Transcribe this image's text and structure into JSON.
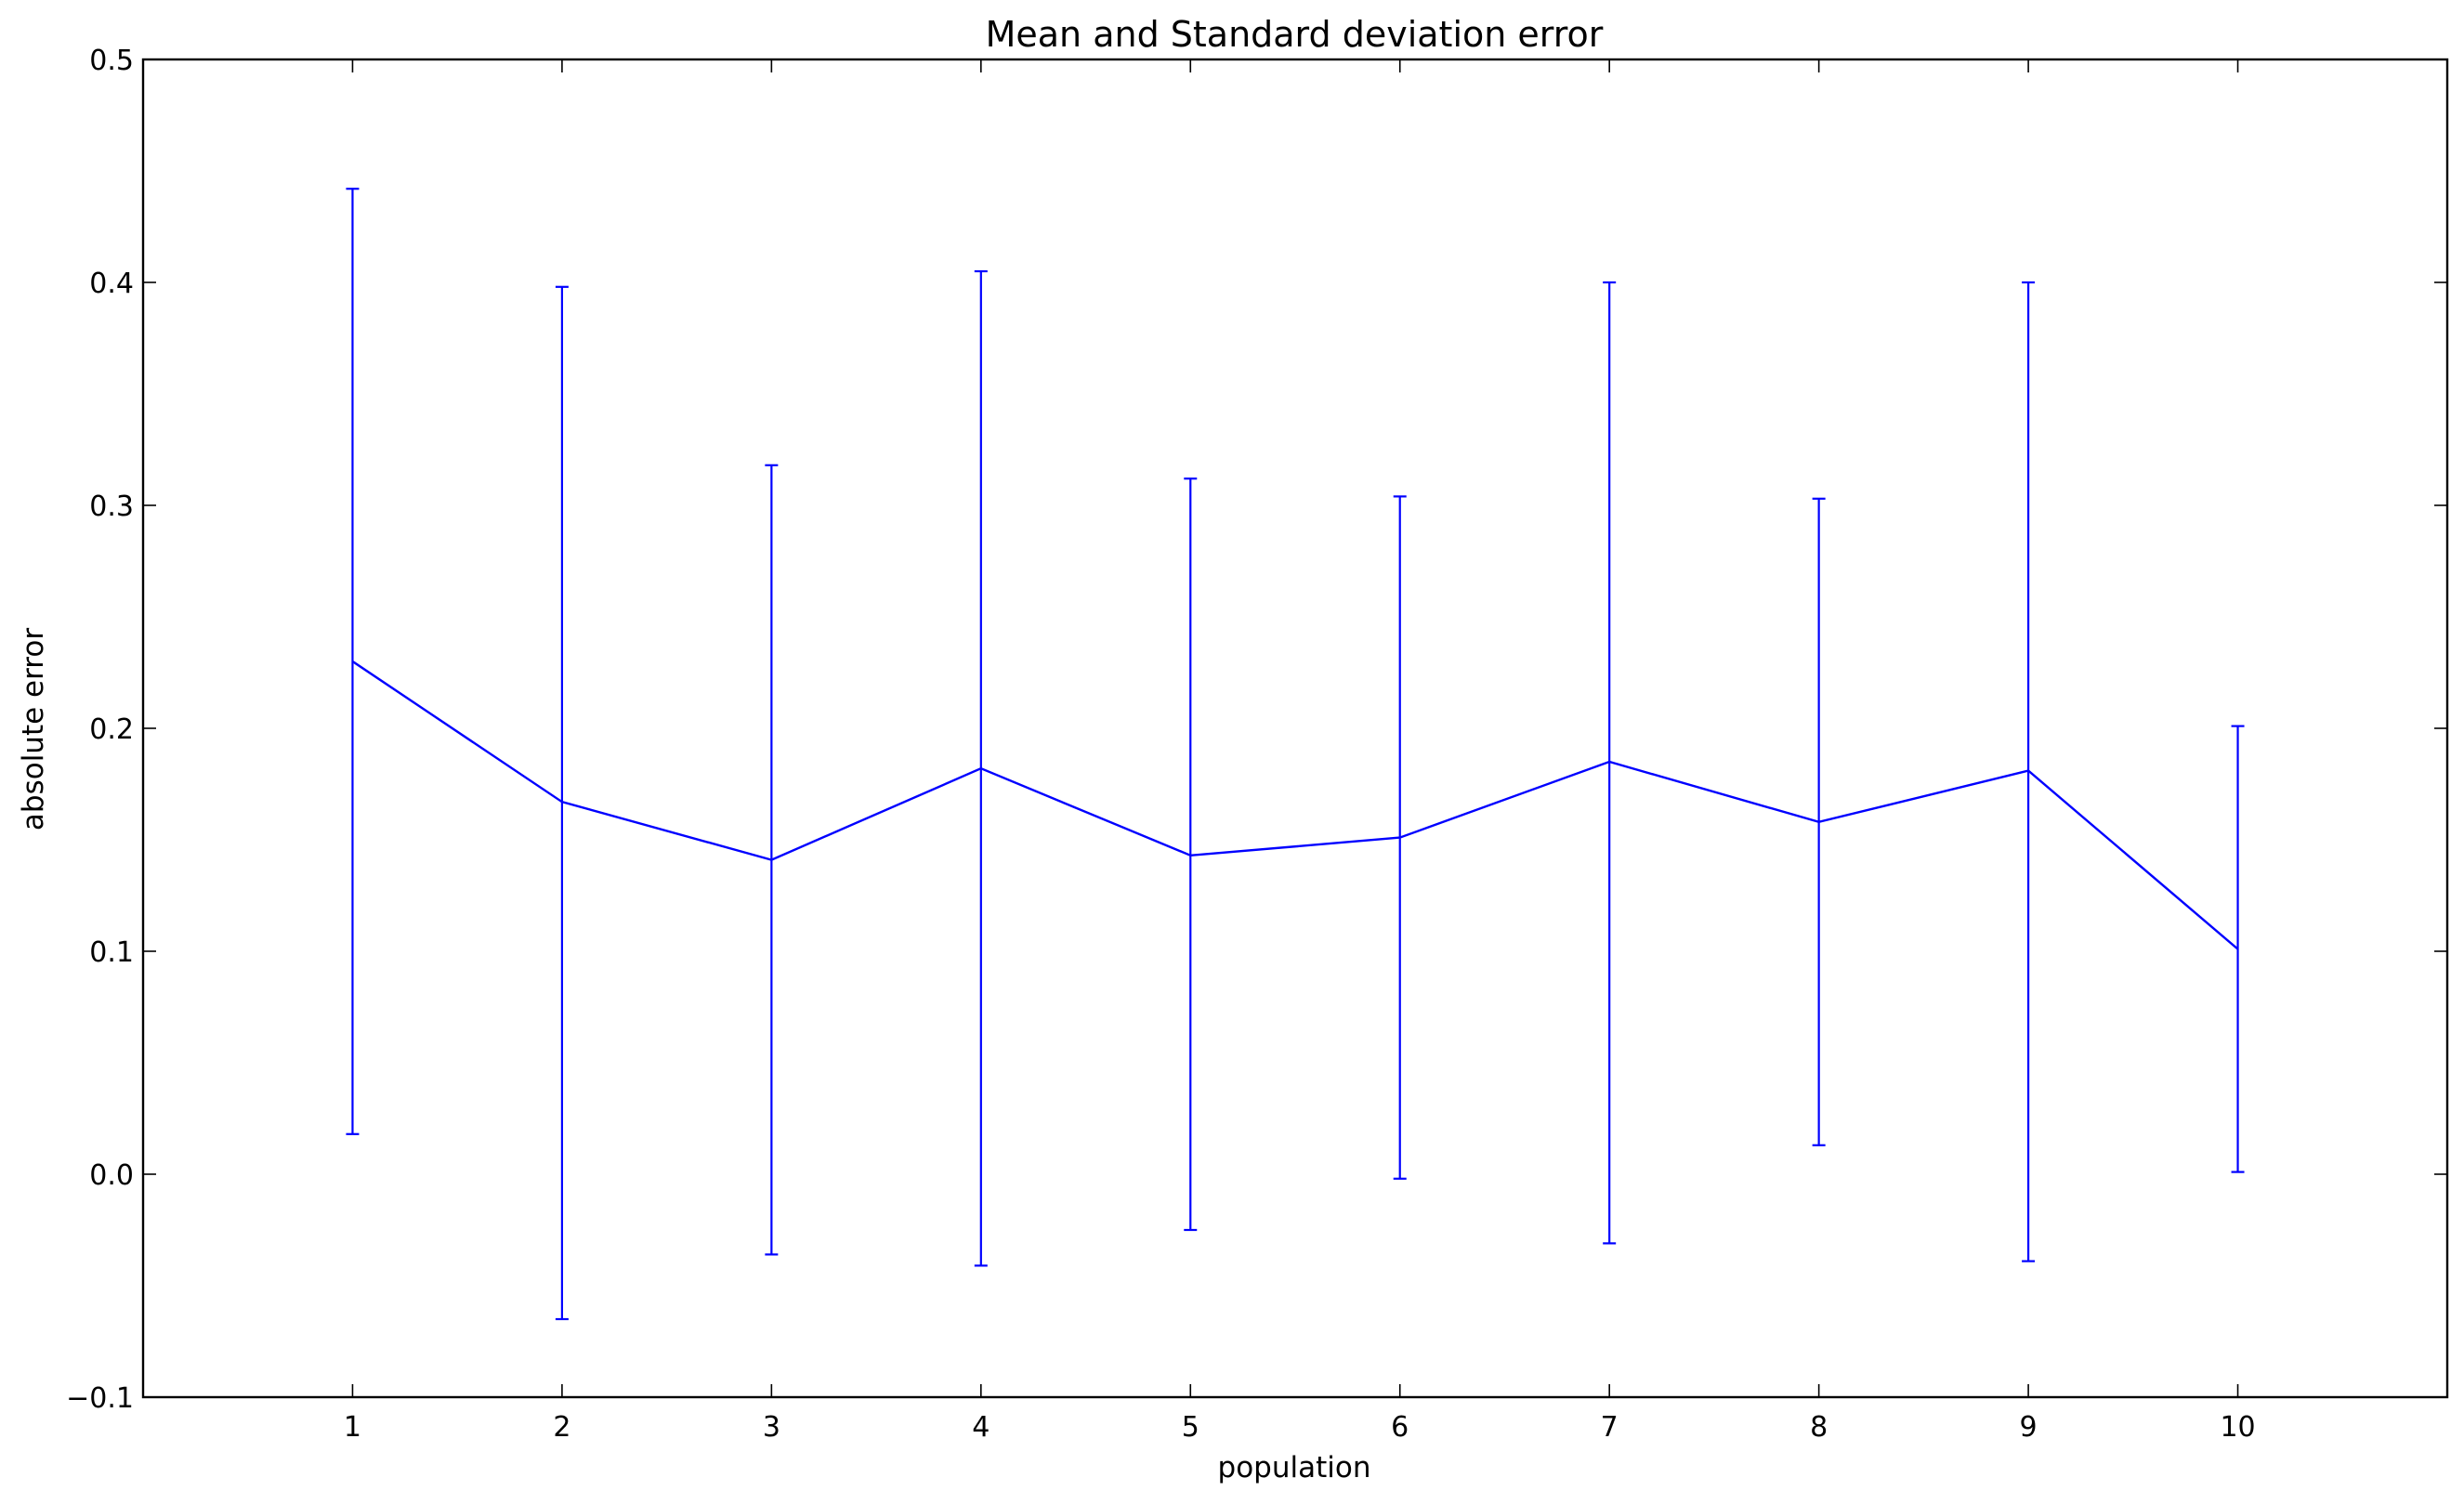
{
  "chart_data": {
    "type": "line",
    "title": "Mean and Standard deviation error",
    "xlabel": "population",
    "ylabel": "absolute error",
    "xlim": [
      0,
      11
    ],
    "ylim": [
      -0.1,
      0.5
    ],
    "x_ticks": [
      1,
      2,
      3,
      4,
      5,
      6,
      7,
      8,
      9,
      10
    ],
    "x_tick_labels": [
      "1",
      "2",
      "3",
      "4",
      "5",
      "6",
      "7",
      "8",
      "9",
      "10"
    ],
    "y_ticks": [
      -0.1,
      0.0,
      0.1,
      0.2,
      0.3,
      0.4,
      0.5
    ],
    "y_tick_labels": [
      "−0.1",
      "0.0",
      "0.1",
      "0.2",
      "0.3",
      "0.4",
      "0.5"
    ],
    "grid": false,
    "error_bars": true,
    "series": [
      {
        "color": "#0000ff",
        "x": [
          1,
          2,
          3,
          4,
          5,
          6,
          7,
          8,
          9,
          10
        ],
        "y": [
          0.23,
          0.167,
          0.141,
          0.182,
          0.143,
          0.151,
          0.185,
          0.158,
          0.181,
          0.101
        ],
        "error_low": [
          0.018,
          -0.065,
          -0.036,
          -0.041,
          -0.025,
          -0.002,
          -0.031,
          0.013,
          -0.039,
          0.001
        ],
        "error_high": [
          0.442,
          0.398,
          0.318,
          0.405,
          0.312,
          0.304,
          0.4,
          0.303,
          0.4,
          0.201
        ]
      }
    ]
  }
}
